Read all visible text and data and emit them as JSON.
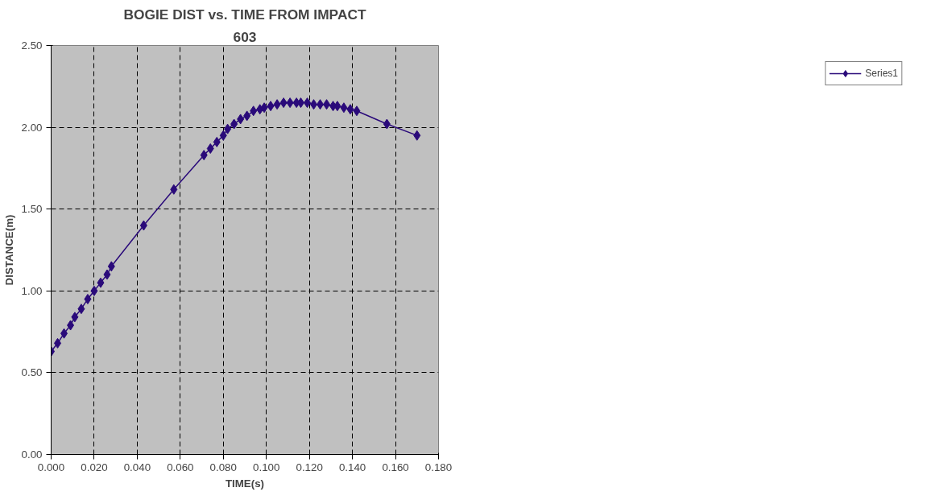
{
  "chart_data": {
    "type": "line",
    "title": "BOGIE DIST vs. TIME FROM IMPACT",
    "subtitle": "603",
    "xlabel": "TIME(s)",
    "ylabel": "DISTANCE(m)",
    "x": [
      0.0,
      0.003,
      0.006,
      0.009,
      0.011,
      0.014,
      0.017,
      0.02,
      0.023,
      0.026,
      0.028,
      0.043,
      0.057,
      0.071,
      0.074,
      0.077,
      0.08,
      0.082,
      0.085,
      0.088,
      0.091,
      0.094,
      0.097,
      0.099,
      0.102,
      0.105,
      0.108,
      0.111,
      0.114,
      0.116,
      0.119,
      0.122,
      0.125,
      0.128,
      0.131,
      0.133,
      0.136,
      0.139,
      0.142,
      0.156,
      0.17
    ],
    "series": [
      {
        "name": "Series1",
        "color": "#2a0a7a",
        "values": [
          0.63,
          0.68,
          0.74,
          0.79,
          0.84,
          0.89,
          0.95,
          1.0,
          1.05,
          1.1,
          1.15,
          1.4,
          1.62,
          1.83,
          1.87,
          1.91,
          1.95,
          1.99,
          2.02,
          2.05,
          2.07,
          2.1,
          2.11,
          2.12,
          2.13,
          2.14,
          2.15,
          2.15,
          2.15,
          2.15,
          2.15,
          2.14,
          2.14,
          2.14,
          2.13,
          2.13,
          2.12,
          2.11,
          2.1,
          2.02,
          1.95
        ]
      }
    ],
    "xlim": [
      0,
      0.18
    ],
    "xticks": [
      {
        "value": 0,
        "label": "0.000"
      },
      {
        "value": 0.02,
        "label": "0.020"
      },
      {
        "value": 0.04,
        "label": "0.040"
      },
      {
        "value": 0.06,
        "label": "0.060"
      },
      {
        "value": 0.08,
        "label": "0.080"
      },
      {
        "value": 0.1,
        "label": "0.100"
      },
      {
        "value": 0.12,
        "label": "0.120"
      },
      {
        "value": 0.14,
        "label": "0.140"
      },
      {
        "value": 0.16,
        "label": "0.160"
      },
      {
        "value": 0.18,
        "label": "0.180"
      }
    ],
    "ylim": [
      0,
      2.5
    ],
    "yticks": [
      {
        "value": 0,
        "label": "0.00"
      },
      {
        "value": 0.5,
        "label": "0.50"
      },
      {
        "value": 1,
        "label": "1.00"
      },
      {
        "value": 1.5,
        "label": "1.50"
      },
      {
        "value": 2,
        "label": "2.00"
      },
      {
        "value": 2.5,
        "label": "2.50"
      }
    ],
    "grid": true,
    "legend": "right",
    "marker": "diamond",
    "line_style": "solid"
  }
}
